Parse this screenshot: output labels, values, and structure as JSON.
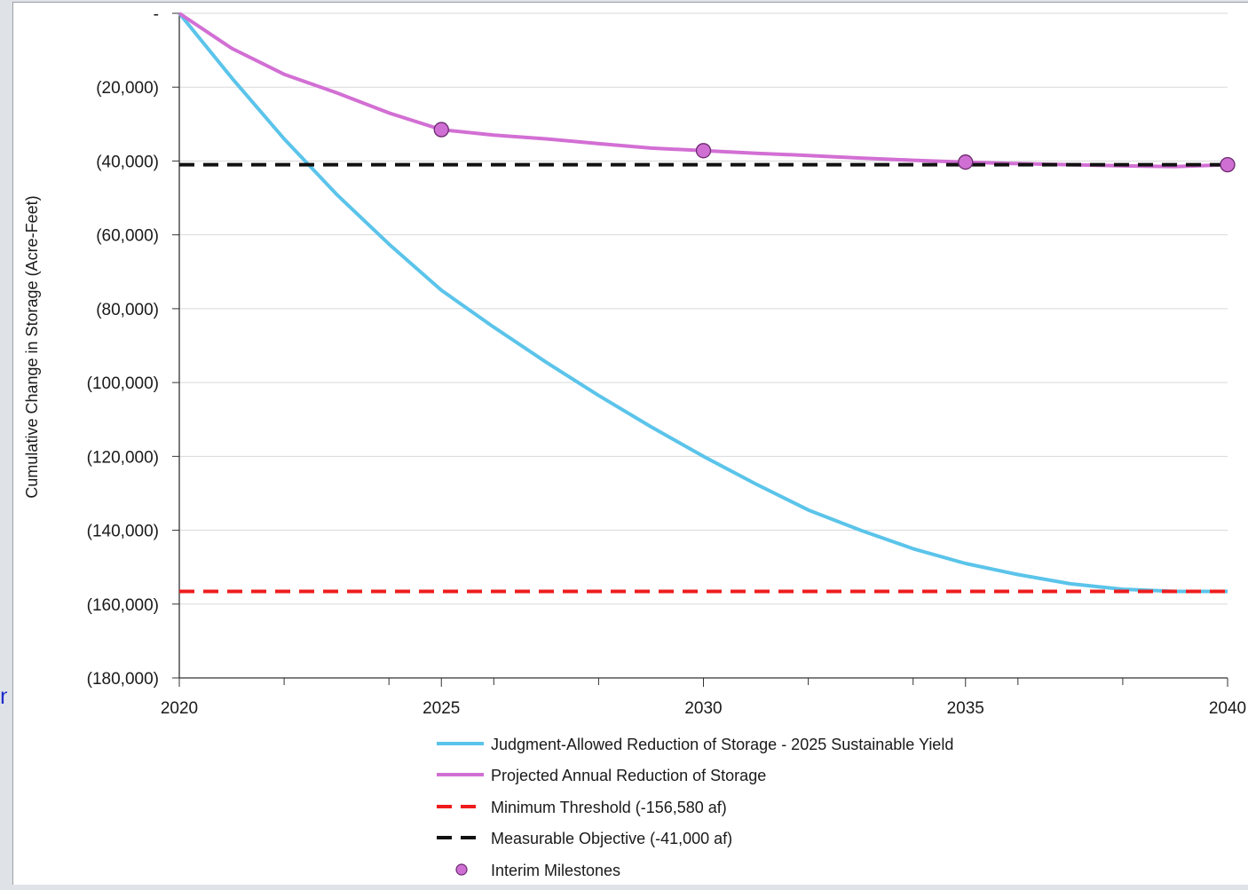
{
  "chart_data": {
    "type": "line",
    "title": "",
    "xlabel": "",
    "ylabel": "Cumulative Change in Storage (Acre-Feet)",
    "xlim": [
      2020,
      2040
    ],
    "ylim": [
      -180000,
      0
    ],
    "x_ticks": [
      2020,
      2025,
      2030,
      2035,
      2040
    ],
    "x_minor_ticks": [
      2022,
      2024,
      2026,
      2028,
      2032,
      2034,
      2036,
      2038
    ],
    "y_ticks": [
      {
        "value": 0,
        "label": "-"
      },
      {
        "value": -20000,
        "label": "(20,000)"
      },
      {
        "value": -40000,
        "label": "(40,000)"
      },
      {
        "value": -60000,
        "label": "(60,000)"
      },
      {
        "value": -80000,
        "label": "(80,000)"
      },
      {
        "value": -100000,
        "label": "(100,000)"
      },
      {
        "value": -120000,
        "label": "(120,000)"
      },
      {
        "value": -140000,
        "label": "(140,000)"
      },
      {
        "value": -160000,
        "label": "(160,000)"
      },
      {
        "value": -180000,
        "label": "(180,000)"
      }
    ],
    "grid": "horizontal",
    "legend_position": "bottom",
    "series": [
      {
        "name": "Judgment-Allowed Reduction of Storage - 2025 Sustainable Yield",
        "style": "solid",
        "color": "#5bc4ea",
        "x": [
          2020,
          2021,
          2022,
          2023,
          2024,
          2025,
          2026,
          2027,
          2028,
          2029,
          2030,
          2031,
          2032,
          2033,
          2034,
          2035,
          2036,
          2037,
          2038,
          2039,
          2040
        ],
        "y": [
          0,
          -17500,
          -34000,
          -49000,
          -62500,
          -75000,
          -85000,
          -94500,
          -103500,
          -112000,
          -120000,
          -127500,
          -134500,
          -140000,
          -145000,
          -149000,
          -152000,
          -154500,
          -156000,
          -156580,
          -156580
        ]
      },
      {
        "name": "Projected Annual Reduction of Storage",
        "style": "solid",
        "color": "#d26fd4",
        "x": [
          2020,
          2021,
          2022,
          2023,
          2024,
          2025,
          2026,
          2027,
          2028,
          2029,
          2030,
          2031,
          2032,
          2033,
          2034,
          2035,
          2036,
          2037,
          2038,
          2039,
          2040
        ],
        "y": [
          0,
          -9500,
          -16500,
          -21500,
          -27000,
          -31500,
          -33000,
          -34000,
          -35300,
          -36500,
          -37200,
          -37900,
          -38500,
          -39200,
          -39800,
          -40300,
          -40700,
          -41000,
          -41300,
          -41500,
          -41000
        ]
      },
      {
        "name": "Minimum Threshold (-156,580 af)",
        "style": "dashed",
        "color": "#ee1c1c",
        "x": [
          2020,
          2040
        ],
        "y": [
          -156580,
          -156580
        ]
      },
      {
        "name": "Measurable Objective (-41,000 af)",
        "style": "dashed",
        "color": "#111111",
        "x": [
          2020,
          2040
        ],
        "y": [
          -41000,
          -41000
        ]
      },
      {
        "name": "Interim Milestones",
        "style": "markers",
        "color": "#cf6fd3",
        "x": [
          2025,
          2030,
          2035,
          2040
        ],
        "y": [
          -31500,
          -37200,
          -40300,
          -41000
        ]
      }
    ]
  }
}
